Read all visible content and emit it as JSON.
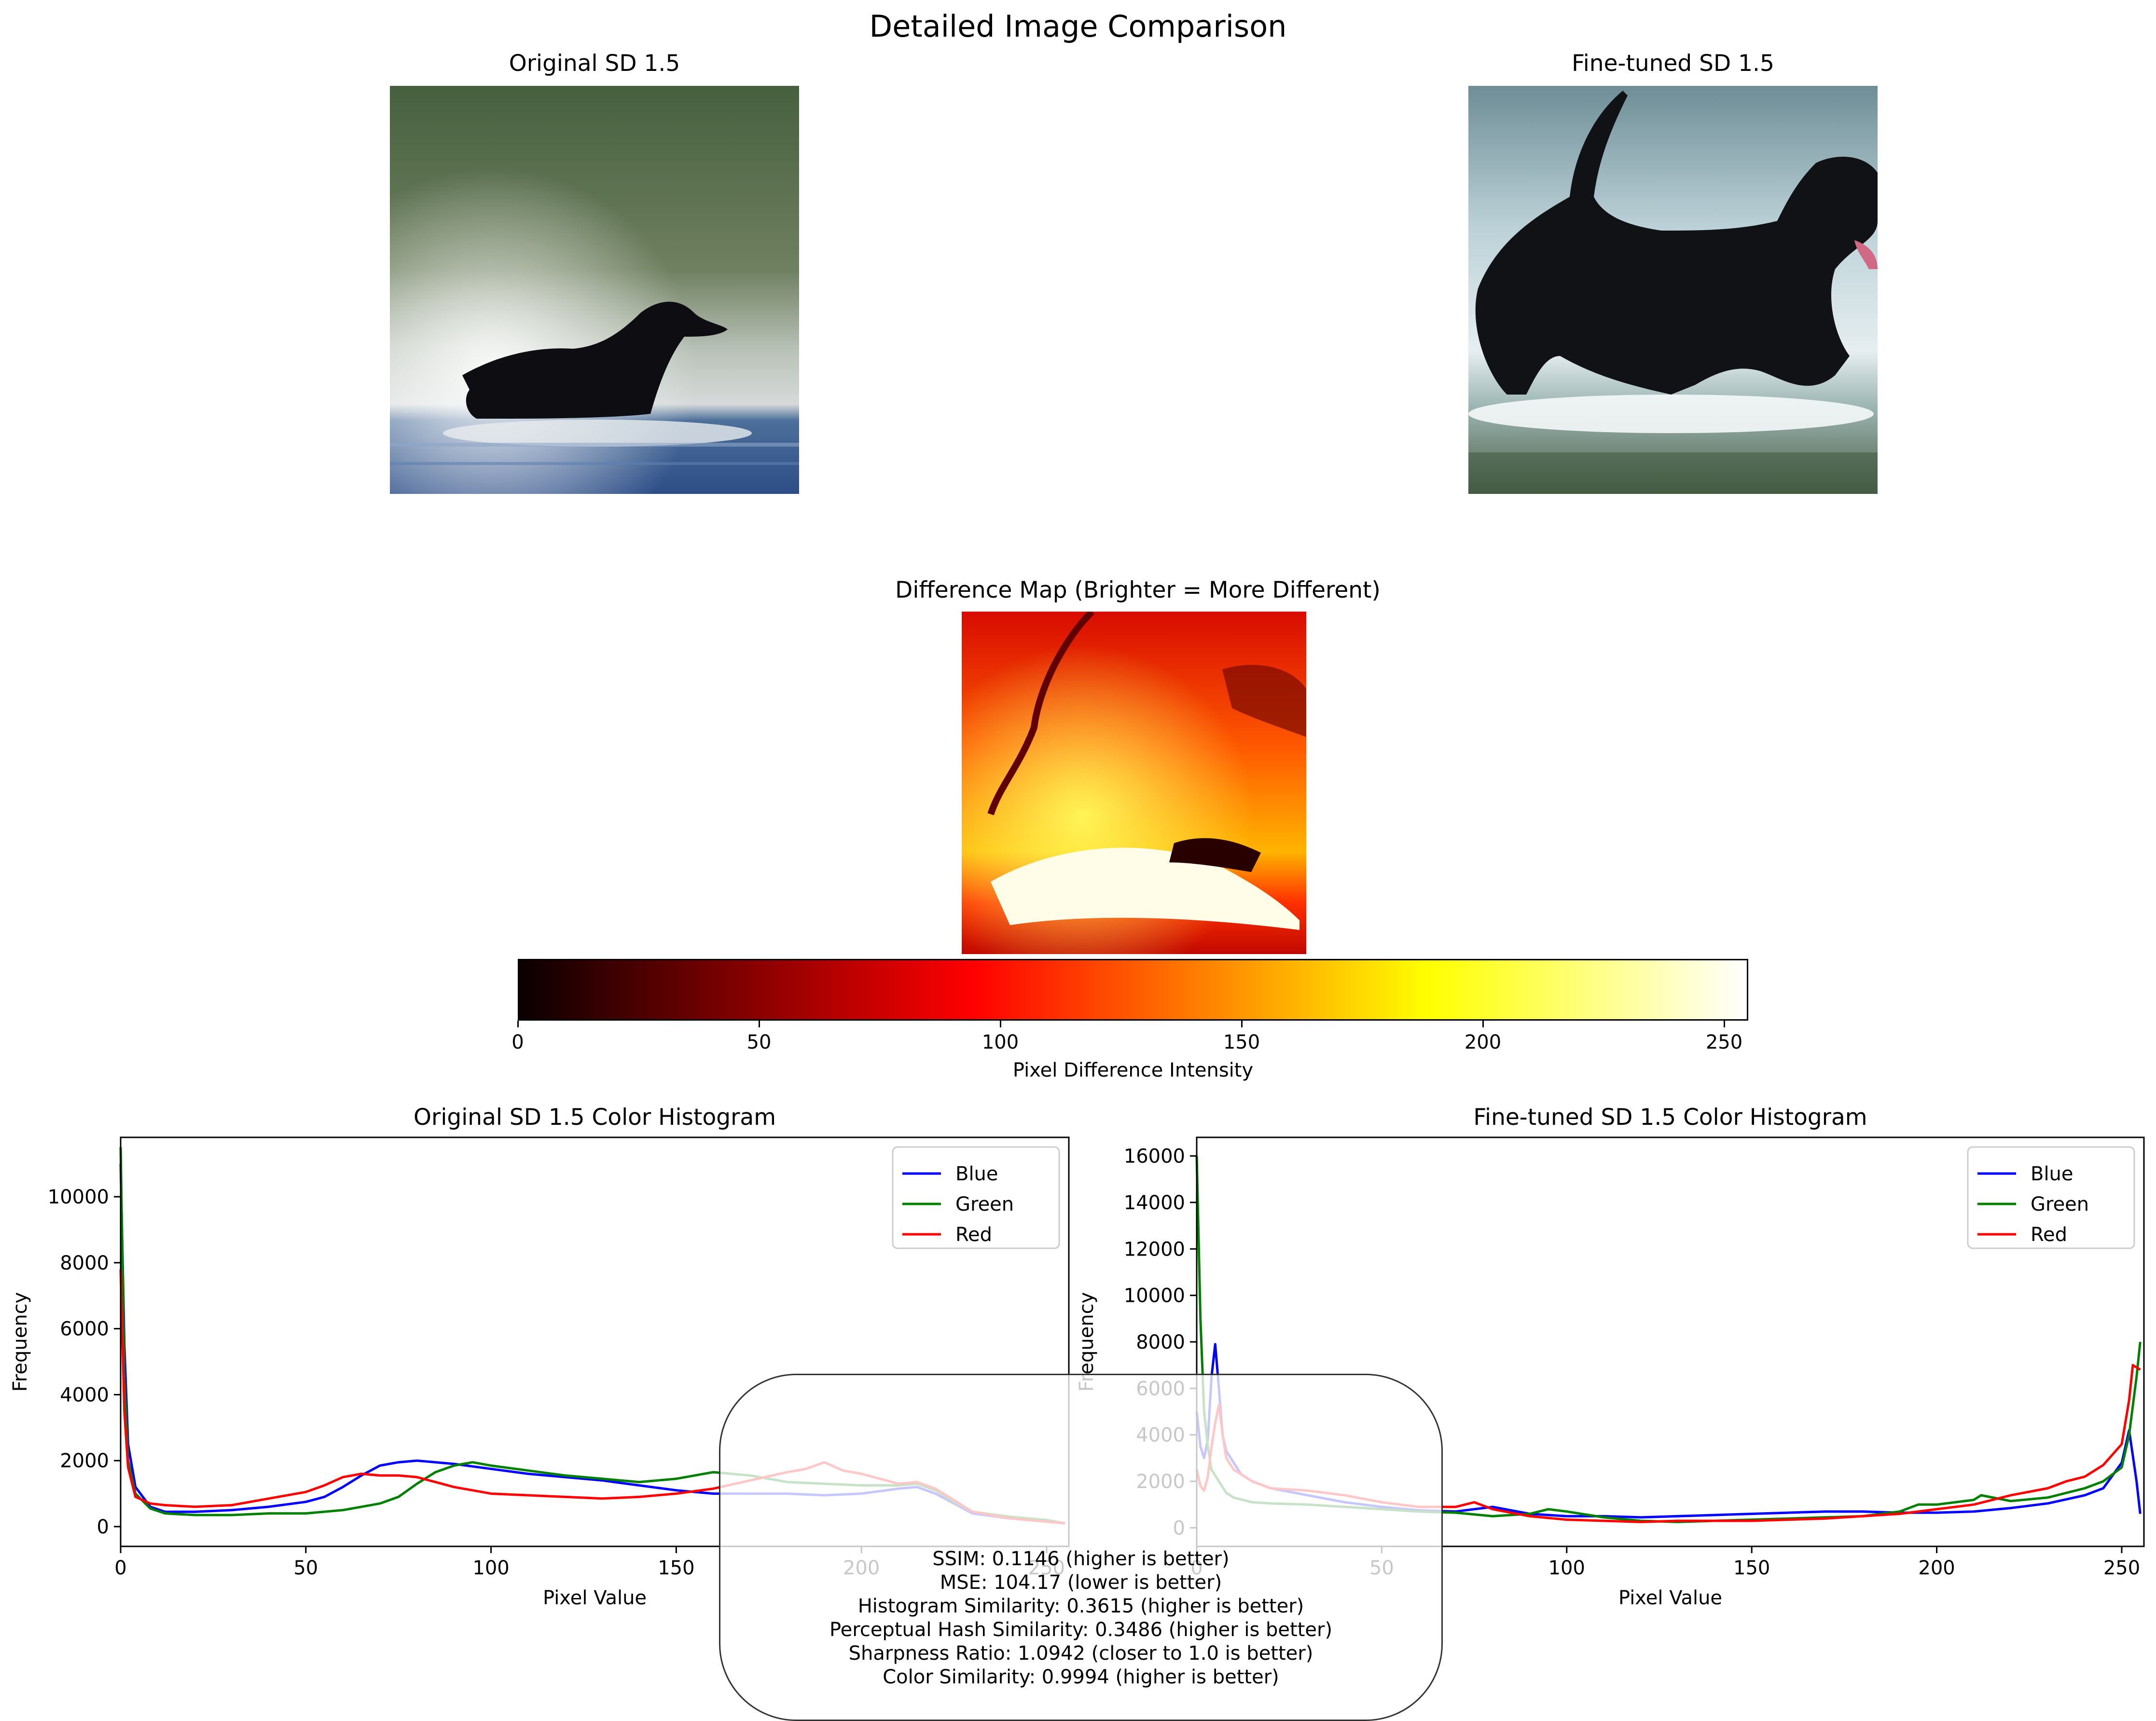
{
  "figure": {
    "title": "Detailed Image Comparison"
  },
  "images": {
    "original_title": "Original SD 1.5",
    "finetuned_title": "Fine-tuned SD 1.5",
    "difference_title": "Difference Map (Brighter = More Different)"
  },
  "colorbar": {
    "label": "Pixel Difference Intensity",
    "ticks": [
      "0",
      "50",
      "100",
      "150",
      "200",
      "250"
    ],
    "range": [
      0,
      255
    ],
    "colormap": "hot"
  },
  "chart_data": [
    {
      "type": "line",
      "title": "Original SD 1.5 Color Histogram",
      "xlabel": "Pixel Value",
      "ylabel": "Frequency",
      "xlim": [
        0,
        256
      ],
      "ylim": [
        -600,
        11800
      ],
      "xticks": [
        "0",
        "50",
        "100",
        "150",
        "200",
        "250"
      ],
      "yticks": [
        "0",
        "2000",
        "4000",
        "6000",
        "8000",
        "10000"
      ],
      "legend_position": "top-right",
      "series": [
        {
          "name": "Blue",
          "color": "#0000ff",
          "points": [
            [
              0,
              11000
            ],
            [
              1,
              5500
            ],
            [
              2,
              2500
            ],
            [
              4,
              1200
            ],
            [
              8,
              600
            ],
            [
              12,
              450
            ],
            [
              20,
              450
            ],
            [
              30,
              500
            ],
            [
              40,
              600
            ],
            [
              50,
              750
            ],
            [
              55,
              900
            ],
            [
              60,
              1200
            ],
            [
              65,
              1550
            ],
            [
              70,
              1850
            ],
            [
              75,
              1950
            ],
            [
              80,
              2000
            ],
            [
              85,
              1950
            ],
            [
              90,
              1900
            ],
            [
              100,
              1750
            ],
            [
              110,
              1600
            ],
            [
              120,
              1500
            ],
            [
              130,
              1400
            ],
            [
              140,
              1250
            ],
            [
              150,
              1100
            ],
            [
              160,
              1000
            ],
            [
              170,
              1000
            ],
            [
              180,
              1000
            ],
            [
              190,
              950
            ],
            [
              200,
              1000
            ],
            [
              210,
              1150
            ],
            [
              215,
              1200
            ],
            [
              220,
              1000
            ],
            [
              225,
              700
            ],
            [
              230,
              400
            ],
            [
              240,
              250
            ],
            [
              250,
              150
            ],
            [
              255,
              100
            ]
          ]
        },
        {
          "name": "Green",
          "color": "#008000",
          "points": [
            [
              0,
              11500
            ],
            [
              1,
              4500
            ],
            [
              2,
              2000
            ],
            [
              4,
              1000
            ],
            [
              8,
              550
            ],
            [
              12,
              400
            ],
            [
              20,
              350
            ],
            [
              30,
              350
            ],
            [
              40,
              400
            ],
            [
              50,
              400
            ],
            [
              60,
              500
            ],
            [
              70,
              700
            ],
            [
              75,
              900
            ],
            [
              80,
              1300
            ],
            [
              85,
              1650
            ],
            [
              90,
              1850
            ],
            [
              95,
              1950
            ],
            [
              100,
              1850
            ],
            [
              110,
              1700
            ],
            [
              120,
              1550
            ],
            [
              130,
              1450
            ],
            [
              140,
              1350
            ],
            [
              150,
              1450
            ],
            [
              160,
              1650
            ],
            [
              170,
              1550
            ],
            [
              180,
              1350
            ],
            [
              190,
              1300
            ],
            [
              200,
              1250
            ],
            [
              210,
              1250
            ],
            [
              215,
              1300
            ],
            [
              220,
              1100
            ],
            [
              225,
              750
            ],
            [
              230,
              450
            ],
            [
              240,
              300
            ],
            [
              250,
              200
            ],
            [
              255,
              100
            ]
          ]
        },
        {
          "name": "Red",
          "color": "#ff0000",
          "points": [
            [
              0,
              7800
            ],
            [
              1,
              3500
            ],
            [
              2,
              1800
            ],
            [
              4,
              900
            ],
            [
              8,
              700
            ],
            [
              12,
              650
            ],
            [
              20,
              600
            ],
            [
              30,
              650
            ],
            [
              40,
              850
            ],
            [
              50,
              1050
            ],
            [
              55,
              1250
            ],
            [
              60,
              1500
            ],
            [
              65,
              1600
            ],
            [
              70,
              1550
            ],
            [
              75,
              1550
            ],
            [
              80,
              1500
            ],
            [
              85,
              1350
            ],
            [
              90,
              1200
            ],
            [
              95,
              1100
            ],
            [
              100,
              1000
            ],
            [
              110,
              950
            ],
            [
              120,
              900
            ],
            [
              130,
              850
            ],
            [
              140,
              900
            ],
            [
              150,
              1000
            ],
            [
              160,
              1150
            ],
            [
              170,
              1400
            ],
            [
              180,
              1650
            ],
            [
              185,
              1750
            ],
            [
              190,
              1950
            ],
            [
              195,
              1700
            ],
            [
              200,
              1600
            ],
            [
              205,
              1450
            ],
            [
              210,
              1300
            ],
            [
              215,
              1350
            ],
            [
              220,
              1150
            ],
            [
              225,
              800
            ],
            [
              230,
              450
            ],
            [
              240,
              250
            ],
            [
              250,
              150
            ],
            [
              255,
              100
            ]
          ]
        }
      ]
    },
    {
      "type": "line",
      "title": "Fine-tuned SD 1.5 Color Histogram",
      "xlabel": "Pixel Value",
      "ylabel": "Frequency",
      "xlim": [
        0,
        256
      ],
      "ylim": [
        -800,
        16800
      ],
      "xticks": [
        "0",
        "50",
        "100",
        "150",
        "200",
        "250"
      ],
      "yticks": [
        "0",
        "2000",
        "4000",
        "6000",
        "8000",
        "10000",
        "12000",
        "14000",
        "16000"
      ],
      "legend_position": "top-right",
      "series": [
        {
          "name": "Blue",
          "color": "#0000ff",
          "points": [
            [
              0,
              5000
            ],
            [
              1,
              3500
            ],
            [
              2,
              3000
            ],
            [
              3,
              3800
            ],
            [
              4,
              6500
            ],
            [
              5,
              7900
            ],
            [
              6,
              6000
            ],
            [
              7,
              4000
            ],
            [
              8,
              3300
            ],
            [
              10,
              2800
            ],
            [
              12,
              2300
            ],
            [
              15,
              2000
            ],
            [
              20,
              1700
            ],
            [
              30,
              1400
            ],
            [
              40,
              1100
            ],
            [
              50,
              900
            ],
            [
              60,
              750
            ],
            [
              70,
              700
            ],
            [
              80,
              900
            ],
            [
              90,
              600
            ],
            [
              100,
              500
            ],
            [
              110,
              500
            ],
            [
              120,
              450
            ],
            [
              130,
              500
            ],
            [
              140,
              550
            ],
            [
              150,
              600
            ],
            [
              160,
              650
            ],
            [
              170,
              700
            ],
            [
              180,
              700
            ],
            [
              190,
              650
            ],
            [
              200,
              650
            ],
            [
              210,
              700
            ],
            [
              220,
              850
            ],
            [
              230,
              1050
            ],
            [
              240,
              1400
            ],
            [
              245,
              1700
            ],
            [
              250,
              2800
            ],
            [
              252,
              4200
            ],
            [
              254,
              2000
            ],
            [
              255,
              600
            ]
          ]
        },
        {
          "name": "Green",
          "color": "#008000",
          "points": [
            [
              0,
              16000
            ],
            [
              1,
              9000
            ],
            [
              2,
              5000
            ],
            [
              3,
              3500
            ],
            [
              4,
              2500
            ],
            [
              6,
              2000
            ],
            [
              8,
              1500
            ],
            [
              10,
              1300
            ],
            [
              15,
              1100
            ],
            [
              20,
              1050
            ],
            [
              30,
              1000
            ],
            [
              40,
              900
            ],
            [
              50,
              800
            ],
            [
              60,
              700
            ],
            [
              70,
              650
            ],
            [
              80,
              500
            ],
            [
              90,
              600
            ],
            [
              95,
              800
            ],
            [
              100,
              700
            ],
            [
              110,
              450
            ],
            [
              120,
              300
            ],
            [
              130,
              250
            ],
            [
              140,
              300
            ],
            [
              150,
              350
            ],
            [
              160,
              400
            ],
            [
              170,
              450
            ],
            [
              180,
              500
            ],
            [
              190,
              700
            ],
            [
              195,
              1000
            ],
            [
              200,
              1000
            ],
            [
              210,
              1200
            ],
            [
              212,
              1400
            ],
            [
              220,
              1150
            ],
            [
              230,
              1300
            ],
            [
              240,
              1700
            ],
            [
              245,
              2000
            ],
            [
              250,
              2600
            ],
            [
              252,
              4000
            ],
            [
              254,
              6500
            ],
            [
              255,
              8000
            ]
          ]
        },
        {
          "name": "Red",
          "color": "#ff0000",
          "points": [
            [
              0,
              2500
            ],
            [
              1,
              1800
            ],
            [
              2,
              1600
            ],
            [
              3,
              2200
            ],
            [
              4,
              3500
            ],
            [
              5,
              4500
            ],
            [
              6,
              5300
            ],
            [
              7,
              4000
            ],
            [
              8,
              3000
            ],
            [
              10,
              2500
            ],
            [
              15,
              2000
            ],
            [
              20,
              1700
            ],
            [
              30,
              1600
            ],
            [
              40,
              1400
            ],
            [
              50,
              1100
            ],
            [
              60,
              900
            ],
            [
              70,
              900
            ],
            [
              75,
              1100
            ],
            [
              80,
              800
            ],
            [
              90,
              500
            ],
            [
              100,
              350
            ],
            [
              110,
              300
            ],
            [
              120,
              250
            ],
            [
              130,
              300
            ],
            [
              140,
              300
            ],
            [
              150,
              300
            ],
            [
              160,
              350
            ],
            [
              170,
              400
            ],
            [
              180,
              500
            ],
            [
              190,
              600
            ],
            [
              200,
              800
            ],
            [
              210,
              1000
            ],
            [
              220,
              1400
            ],
            [
              230,
              1700
            ],
            [
              235,
              2000
            ],
            [
              240,
              2200
            ],
            [
              245,
              2700
            ],
            [
              250,
              3600
            ],
            [
              252,
              5500
            ],
            [
              253,
              7000
            ],
            [
              255,
              6800
            ]
          ]
        }
      ]
    }
  ],
  "metrics": {
    "lines": [
      "SSIM: 0.1146 (higher is better)",
      "MSE: 104.17 (lower is better)",
      "Histogram Similarity: 0.3615 (higher is better)",
      "Perceptual Hash Similarity: 0.3486 (higher is better)",
      "Sharpness Ratio: 1.0942 (closer to 1.0 is better)",
      "Color Similarity: 0.9994 (higher is better)"
    ]
  }
}
